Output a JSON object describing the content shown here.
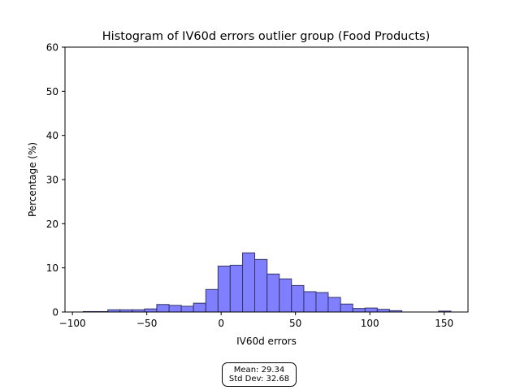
{
  "chart_data": {
    "type": "bar",
    "title": "Histogram of IV60d errors outlier group (Food Products)",
    "xlabel": "IV60d errors",
    "ylabel": "Percentage (%)",
    "xlim": [
      -105,
      166
    ],
    "ylim": [
      0,
      60
    ],
    "x_ticks": [
      -100,
      -50,
      0,
      50,
      100,
      150
    ],
    "x_tick_labels": [
      "−100",
      "−50",
      "0",
      "50",
      "100",
      "150"
    ],
    "y_ticks": [
      0,
      10,
      20,
      30,
      40,
      50,
      60
    ],
    "y_tick_labels": [
      "0",
      "10",
      "20",
      "30",
      "40",
      "50",
      "60"
    ],
    "bar_color": "#7f7fff",
    "bar_edge_color": "#333366",
    "bins": [
      {
        "x0": -92.7,
        "x1": -84.5,
        "value": 0.1
      },
      {
        "x0": -84.5,
        "x1": -76.2,
        "value": 0.1
      },
      {
        "x0": -76.2,
        "x1": -68.0,
        "value": 0.5
      },
      {
        "x0": -68.0,
        "x1": -59.8,
        "value": 0.5
      },
      {
        "x0": -59.8,
        "x1": -51.5,
        "value": 0.5
      },
      {
        "x0": -51.5,
        "x1": -43.3,
        "value": 0.7
      },
      {
        "x0": -43.3,
        "x1": -35.0,
        "value": 1.7
      },
      {
        "x0": -35.0,
        "x1": -26.8,
        "value": 1.5
      },
      {
        "x0": -26.8,
        "x1": -18.6,
        "value": 1.3
      },
      {
        "x0": -18.6,
        "x1": -10.3,
        "value": 2.0
      },
      {
        "x0": -10.3,
        "x1": -2.1,
        "value": 5.1
      },
      {
        "x0": -2.1,
        "x1": 6.1,
        "value": 10.4
      },
      {
        "x0": 6.1,
        "x1": 14.4,
        "value": 10.6
      },
      {
        "x0": 14.4,
        "x1": 22.6,
        "value": 13.4
      },
      {
        "x0": 22.6,
        "x1": 30.9,
        "value": 11.9
      },
      {
        "x0": 30.9,
        "x1": 39.1,
        "value": 8.6
      },
      {
        "x0": 39.1,
        "x1": 47.3,
        "value": 7.5
      },
      {
        "x0": 47.3,
        "x1": 55.6,
        "value": 6.0
      },
      {
        "x0": 55.6,
        "x1": 63.8,
        "value": 4.6
      },
      {
        "x0": 63.8,
        "x1": 72.0,
        "value": 4.4
      },
      {
        "x0": 72.0,
        "x1": 80.3,
        "value": 3.3
      },
      {
        "x0": 80.3,
        "x1": 88.5,
        "value": 1.8
      },
      {
        "x0": 88.5,
        "x1": 96.8,
        "value": 0.8
      },
      {
        "x0": 96.8,
        "x1": 105.0,
        "value": 0.9
      },
      {
        "x0": 105.0,
        "x1": 113.2,
        "value": 0.6
      },
      {
        "x0": 113.2,
        "x1": 121.5,
        "value": 0.3
      },
      {
        "x0": 146.2,
        "x1": 154.5,
        "value": 0.2
      }
    ],
    "stats": {
      "mean_label": "Mean: 29.34",
      "std_label": "Std Dev: 32.68"
    }
  }
}
